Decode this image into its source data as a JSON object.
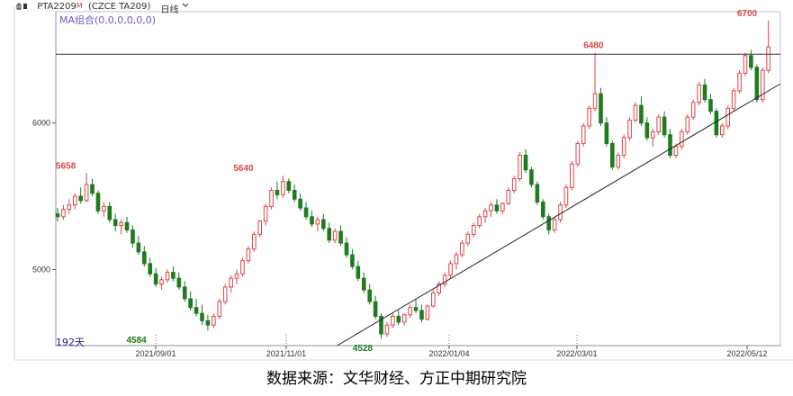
{
  "header": {
    "symbol": "PTA2209",
    "superscript": "M",
    "exchange": "(CZCE TA209)",
    "period": "日线",
    "indicator": "MA组合(0,0,0,0,0,0)"
  },
  "days_label": "192天",
  "caption": "数据来源：文华财经、方正中期研究院",
  "colors": {
    "up": "#e0454a",
    "down": "#1e7b1e",
    "trend": "#222222",
    "hline": "#333333"
  },
  "chart_data": {
    "type": "candlestick",
    "x_tick_labels": [
      "2021/09/01",
      "2021/11/01",
      "2022/01/04",
      "2022/03/01",
      "2022/05/12"
    ],
    "y_tick_labels": [
      "5000",
      "6000"
    ],
    "ylim": [
      4480,
      6760
    ],
    "grid": false,
    "horizontal_line": 6470,
    "trend_line": {
      "from": [
        "2021/11/20",
        4470
      ],
      "to": [
        "2022/05/19",
        6200
      ]
    },
    "annotations": [
      {
        "label": "5658",
        "value": 5658,
        "date": "2021/07/21",
        "color": "up"
      },
      {
        "label": "4584",
        "value": 4584,
        "date": "2021/08/23",
        "color": "down"
      },
      {
        "label": "5640",
        "value": 5640,
        "date": "2021/10/12",
        "color": "up"
      },
      {
        "label": "4528",
        "value": 4528,
        "date": "2021/12/01",
        "color": "down"
      },
      {
        "label": "6480",
        "value": 6480,
        "date": "2022/03/08",
        "color": "up"
      },
      {
        "label": "6700",
        "value": 6700,
        "date": "2022/05/12",
        "color": "up"
      }
    ],
    "ohlc": [
      [
        5380,
        5420,
        5330,
        5360
      ],
      [
        5360,
        5440,
        5340,
        5410
      ],
      [
        5410,
        5480,
        5380,
        5440
      ],
      [
        5440,
        5520,
        5410,
        5500
      ],
      [
        5500,
        5560,
        5450,
        5470
      ],
      [
        5470,
        5658,
        5460,
        5580
      ],
      [
        5580,
        5620,
        5500,
        5520
      ],
      [
        5520,
        5540,
        5380,
        5400
      ],
      [
        5400,
        5460,
        5360,
        5430
      ],
      [
        5430,
        5460,
        5320,
        5340
      ],
      [
        5340,
        5380,
        5260,
        5300
      ],
      [
        5300,
        5340,
        5240,
        5320
      ],
      [
        5320,
        5360,
        5250,
        5270
      ],
      [
        5270,
        5300,
        5150,
        5180
      ],
      [
        5180,
        5230,
        5100,
        5120
      ],
      [
        5120,
        5160,
        5020,
        5040
      ],
      [
        5040,
        5080,
        4950,
        4970
      ],
      [
        4970,
        5010,
        4880,
        4900
      ],
      [
        4900,
        4950,
        4860,
        4930
      ],
      [
        4930,
        5000,
        4910,
        4980
      ],
      [
        4980,
        5020,
        4920,
        4940
      ],
      [
        4940,
        4980,
        4860,
        4880
      ],
      [
        4880,
        4920,
        4780,
        4800
      ],
      [
        4800,
        4850,
        4720,
        4740
      ],
      [
        4740,
        4800,
        4680,
        4700
      ],
      [
        4700,
        4760,
        4620,
        4650
      ],
      [
        4650,
        4690,
        4584,
        4620
      ],
      [
        4620,
        4700,
        4600,
        4680
      ],
      [
        4680,
        4800,
        4660,
        4780
      ],
      [
        4780,
        4900,
        4760,
        4880
      ],
      [
        4880,
        4960,
        4840,
        4940
      ],
      [
        4940,
        5000,
        4900,
        4970
      ],
      [
        4970,
        5080,
        4950,
        5060
      ],
      [
        5060,
        5160,
        5040,
        5140
      ],
      [
        5140,
        5260,
        5120,
        5240
      ],
      [
        5240,
        5340,
        5220,
        5330
      ],
      [
        5330,
        5450,
        5300,
        5430
      ],
      [
        5430,
        5560,
        5410,
        5540
      ],
      [
        5540,
        5600,
        5480,
        5510
      ],
      [
        5510,
        5640,
        5490,
        5600
      ],
      [
        5600,
        5620,
        5520,
        5540
      ],
      [
        5540,
        5580,
        5460,
        5480
      ],
      [
        5480,
        5520,
        5400,
        5420
      ],
      [
        5420,
        5460,
        5340,
        5360
      ],
      [
        5360,
        5400,
        5290,
        5310
      ],
      [
        5310,
        5360,
        5260,
        5340
      ],
      [
        5340,
        5380,
        5260,
        5280
      ],
      [
        5280,
        5320,
        5180,
        5200
      ],
      [
        5200,
        5280,
        5180,
        5260
      ],
      [
        5260,
        5300,
        5160,
        5180
      ],
      [
        5180,
        5220,
        5080,
        5100
      ],
      [
        5100,
        5140,
        5000,
        5020
      ],
      [
        5020,
        5060,
        4920,
        4940
      ],
      [
        4940,
        4980,
        4840,
        4860
      ],
      [
        4860,
        4900,
        4760,
        4780
      ],
      [
        4780,
        4820,
        4660,
        4680
      ],
      [
        4680,
        4700,
        4528,
        4560
      ],
      [
        4560,
        4640,
        4540,
        4620
      ],
      [
        4620,
        4700,
        4600,
        4680
      ],
      [
        4680,
        4720,
        4620,
        4640
      ],
      [
        4640,
        4700,
        4620,
        4690
      ],
      [
        4690,
        4760,
        4670,
        4740
      ],
      [
        4740,
        4800,
        4700,
        4720
      ],
      [
        4720,
        4760,
        4640,
        4660
      ],
      [
        4660,
        4760,
        4650,
        4750
      ],
      [
        4750,
        4860,
        4740,
        4840
      ],
      [
        4840,
        4920,
        4820,
        4900
      ],
      [
        4900,
        4980,
        4880,
        4960
      ],
      [
        4960,
        5060,
        4940,
        5040
      ],
      [
        5040,
        5120,
        5000,
        5100
      ],
      [
        5100,
        5200,
        5080,
        5180
      ],
      [
        5180,
        5260,
        5160,
        5240
      ],
      [
        5240,
        5320,
        5220,
        5300
      ],
      [
        5300,
        5380,
        5280,
        5360
      ],
      [
        5360,
        5420,
        5320,
        5400
      ],
      [
        5400,
        5460,
        5360,
        5440
      ],
      [
        5440,
        5480,
        5380,
        5400
      ],
      [
        5400,
        5460,
        5380,
        5450
      ],
      [
        5450,
        5560,
        5440,
        5540
      ],
      [
        5540,
        5640,
        5520,
        5620
      ],
      [
        5620,
        5800,
        5600,
        5780
      ],
      [
        5780,
        5820,
        5660,
        5680
      ],
      [
        5680,
        5700,
        5560,
        5580
      ],
      [
        5580,
        5600,
        5440,
        5460
      ],
      [
        5460,
        5480,
        5340,
        5360
      ],
      [
        5360,
        5380,
        5240,
        5270
      ],
      [
        5270,
        5360,
        5250,
        5340
      ],
      [
        5340,
        5460,
        5320,
        5440
      ],
      [
        5440,
        5580,
        5420,
        5560
      ],
      [
        5560,
        5740,
        5540,
        5720
      ],
      [
        5720,
        5880,
        5700,
        5860
      ],
      [
        5860,
        6000,
        5840,
        5980
      ],
      [
        5980,
        6120,
        5960,
        6100
      ],
      [
        6100,
        6480,
        6080,
        6200
      ],
      [
        6200,
        6240,
        5980,
        6000
      ],
      [
        6000,
        6040,
        5840,
        5860
      ],
      [
        5860,
        5880,
        5680,
        5700
      ],
      [
        5700,
        5800,
        5680,
        5780
      ],
      [
        5780,
        5920,
        5760,
        5900
      ],
      [
        5900,
        6040,
        5880,
        6020
      ],
      [
        6020,
        6140,
        6000,
        6120
      ],
      [
        6120,
        6180,
        5980,
        6000
      ],
      [
        6000,
        6040,
        5880,
        5900
      ],
      [
        5900,
        5960,
        5840,
        5940
      ],
      [
        5940,
        6060,
        5920,
        6040
      ],
      [
        6040,
        6080,
        5900,
        5920
      ],
      [
        5920,
        5960,
        5760,
        5780
      ],
      [
        5780,
        5860,
        5760,
        5840
      ],
      [
        5840,
        5960,
        5820,
        5940
      ],
      [
        5940,
        6060,
        5920,
        6040
      ],
      [
        6040,
        6160,
        6020,
        6140
      ],
      [
        6140,
        6280,
        6120,
        6260
      ],
      [
        6260,
        6300,
        6140,
        6160
      ],
      [
        6160,
        6200,
        6060,
        6080
      ],
      [
        6080,
        6100,
        5900,
        5920
      ],
      [
        5920,
        6000,
        5900,
        5980
      ],
      [
        5980,
        6120,
        5960,
        6100
      ],
      [
        6100,
        6240,
        6080,
        6220
      ],
      [
        6220,
        6360,
        6200,
        6340
      ],
      [
        6340,
        6480,
        6320,
        6460
      ],
      [
        6460,
        6500,
        6360,
        6380
      ],
      [
        6380,
        6400,
        6140,
        6160
      ],
      [
        6160,
        6380,
        6140,
        6360
      ],
      [
        6360,
        6700,
        6340,
        6520
      ]
    ]
  }
}
